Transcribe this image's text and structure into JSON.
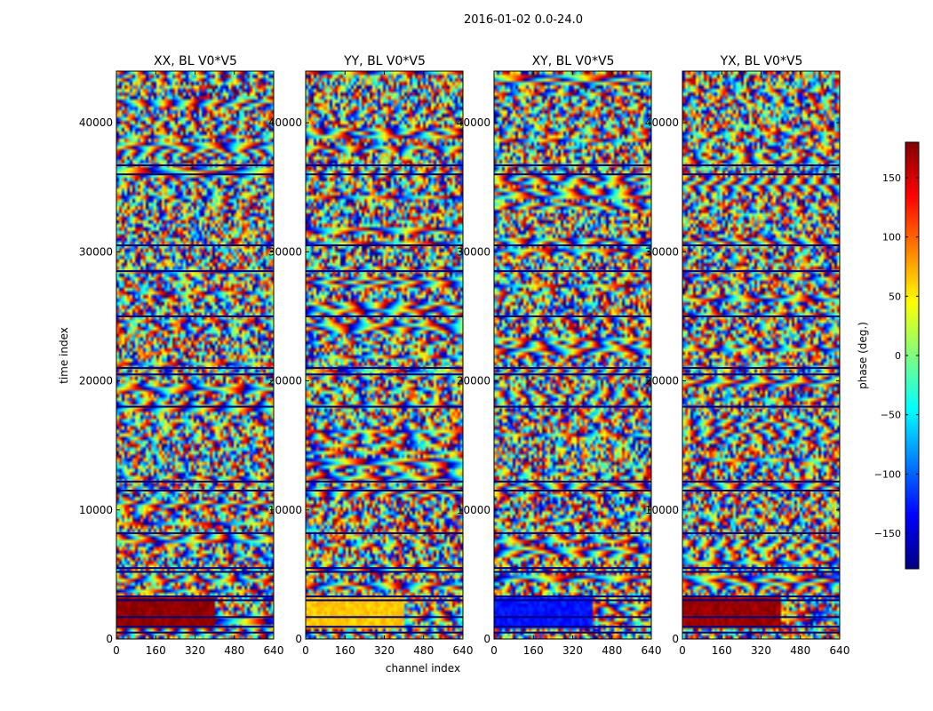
{
  "suptitle": "2016-01-02 0.0-24.0",
  "chart_data": {
    "type": "heatmap",
    "title": "2016-01-02 0.0-24.0",
    "xlabel": "channel index",
    "ylabel": "time index",
    "xlim": [
      0,
      640
    ],
    "ylim": [
      0,
      44000
    ],
    "xticks": [
      0,
      160,
      320,
      480,
      640
    ],
    "yticks": [
      0,
      10000,
      20000,
      30000,
      40000
    ],
    "colorbar": {
      "label": "phase (deg.)",
      "range": [
        -180,
        180
      ],
      "ticks": [
        -150,
        -100,
        -50,
        0,
        50,
        100,
        150
      ],
      "tick_labels": [
        "−150",
        "−100",
        "−50",
        "0",
        "50",
        "100",
        "150"
      ],
      "colormap": "jet",
      "colors": [
        "#00007f",
        "#0000ff",
        "#007fff",
        "#00ffff",
        "#7fff7f",
        "#ffff00",
        "#ff7f00",
        "#ff0000",
        "#7f0000"
      ]
    },
    "panels": [
      {
        "name": "XX, BL V0*V5",
        "low_band_phase": 175,
        "low_band_cutoff": 400
      },
      {
        "name": "YY, BL V0*V5",
        "low_band_phase": 65,
        "low_band_cutoff": 400
      },
      {
        "name": "XY, BL V0*V5",
        "low_band_phase": -130,
        "low_band_cutoff": 400
      },
      {
        "name": "YX, BL V0*V5",
        "low_band_phase": 170,
        "low_band_cutoff": 400
      }
    ],
    "flagged_rows": [
      500,
      950,
      1700,
      3000,
      3300,
      5200,
      5500,
      8200,
      11500,
      12200,
      18000,
      20500,
      21000,
      25000,
      28500,
      30500,
      36000,
      36700
    ]
  }
}
